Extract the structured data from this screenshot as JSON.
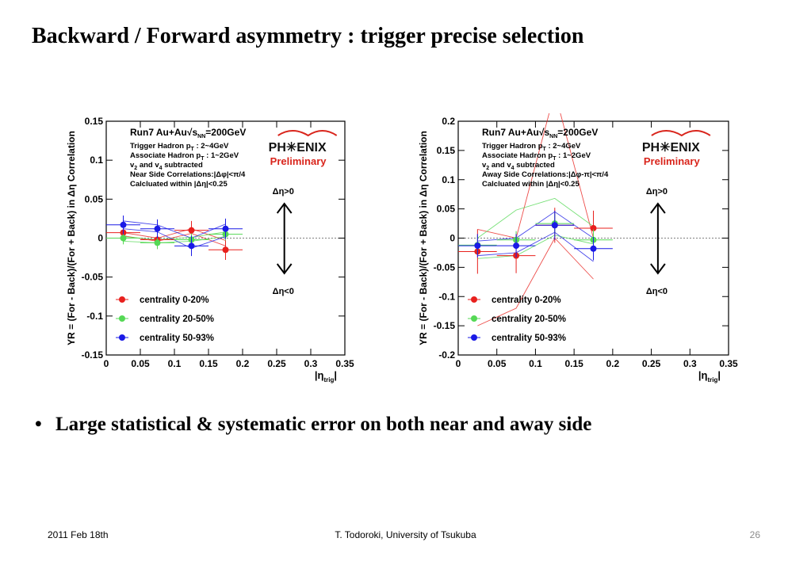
{
  "slide": {
    "title": "Backward / Forward asymmetry : trigger precise selection",
    "bullet_symbol": "•",
    "bullet": "Large statistical & systematic error on both near and away side",
    "footer_date": "2011 Feb 18th",
    "footer_author": "T. Todoroki, University of Tsukuba",
    "page_number": "26"
  },
  "chart_data": [
    {
      "type": "scatter",
      "panel": "left",
      "title": "",
      "ylabel": "YR = (For - Back)/(For + Back) in Δη Correlation",
      "xlabel_main": "|η",
      "xlabel_sub": "trig",
      "xlabel_end": "|",
      "xlim": [
        0,
        0.35
      ],
      "ylim": [
        -0.15,
        0.15
      ],
      "x_ticks": [
        0,
        0.05,
        0.1,
        0.15,
        0.2,
        0.25,
        0.3,
        0.35
      ],
      "x_tick_labels": [
        "0",
        "0.05",
        "0.1",
        "0.15",
        "0.2",
        "0.25",
        "0.3",
        "0.35"
      ],
      "y_ticks": [
        -0.15,
        -0.1,
        -0.05,
        0,
        0.05,
        0.1,
        0.15
      ],
      "y_tick_labels": [
        "-0.15",
        "-0.1",
        "-0.05",
        "0",
        "0.05",
        "0.1",
        "0.15"
      ],
      "info_lines": [
        "Run7 Au+Au√s_NN=200GeV",
        "Trigger Hadron p_T : 2~4GeV",
        "Associate Hadron p_T : 1~2GeV",
        "v_2 and v_4 subtracted",
        "Near Side Correlations:|Δφ|<π/4",
        "Calcluated within |Δη|<0.25"
      ],
      "logo": "PH✳ENIX",
      "preliminary": "Preliminary",
      "arrow_up_label": "Δη>0",
      "arrow_down_label": "Δη<0",
      "legend_position": "bottom-left",
      "series": [
        {
          "name": "centrality 0-20%",
          "color": "#e8201d",
          "x": [
            0.025,
            0.075,
            0.125,
            0.175
          ],
          "y": [
            0.007,
            -0.002,
            0.01,
            -0.015
          ],
          "err": [
            0.01,
            0.012,
            0.012,
            0.013
          ],
          "sys_lower": [
            0.003,
            -0.004,
            0.006,
            -0.01
          ],
          "sys_upper": [
            0.007,
            0.0,
            0.012,
            -0.003
          ]
        },
        {
          "name": "centrality 20-50%",
          "color": "#55d855",
          "x": [
            0.025,
            0.075,
            0.125,
            0.175
          ],
          "y": [
            0.0,
            -0.006,
            -0.002,
            0.005
          ],
          "err": [
            0.008,
            0.008,
            0.008,
            0.008
          ],
          "sys_lower": [
            -0.004,
            -0.006,
            -0.004,
            0.002
          ],
          "sys_upper": [
            0.002,
            -0.002,
            0.001,
            0.008
          ]
        },
        {
          "name": "centrality 50-93%",
          "color": "#1a1ae6",
          "x": [
            0.025,
            0.075,
            0.125,
            0.175
          ],
          "y": [
            0.017,
            0.012,
            -0.01,
            0.012
          ],
          "err": [
            0.012,
            0.012,
            0.013,
            0.013
          ],
          "sys_lower": [
            0.012,
            0.008,
            -0.013,
            0.002
          ],
          "sys_upper": [
            0.022,
            0.017,
            0.0,
            0.018
          ]
        }
      ]
    },
    {
      "type": "scatter",
      "panel": "right",
      "title": "",
      "ylabel": "YR = (For - Back)/(For + Back) in Δη Correlation",
      "xlabel_main": "|η",
      "xlabel_sub": "trig",
      "xlabel_end": "|",
      "xlim": [
        0,
        0.35
      ],
      "ylim": [
        -0.2,
        0.2
      ],
      "x_ticks": [
        0,
        0.05,
        0.1,
        0.15,
        0.2,
        0.25,
        0.3,
        0.35
      ],
      "x_tick_labels": [
        "0",
        "0.05",
        "0.1",
        "0.15",
        "0.2",
        "0.25",
        "0.3",
        "0.35"
      ],
      "y_ticks": [
        -0.2,
        -0.15,
        -0.1,
        -0.05,
        0,
        0.05,
        0.1,
        0.15,
        0.2
      ],
      "y_tick_labels": [
        "-0.2",
        "-0.15",
        "-0.1",
        "-0.05",
        "0",
        "0.05",
        "0.1",
        "0.15",
        "0.2"
      ],
      "info_lines": [
        "Run7 Au+Au√s_NN=200GeV",
        "Trigger Hadron p_T : 2~4GeV",
        "Associate Hadron p_T : 1~2GeV",
        "v_2 and v_4 subtracted",
        "Away Side Correlations:|Δφ-π|<π/4",
        "Calcluated within |Δη|<0.25"
      ],
      "logo": "PH✳ENIX",
      "preliminary": "Preliminary",
      "arrow_up_label": "Δη>0",
      "arrow_down_label": "Δη<0",
      "legend_position": "bottom-left",
      "series": [
        {
          "name": "centrality 0-20%",
          "color": "#e8201d",
          "x": [
            0.025,
            0.075,
            0.125,
            0.175
          ],
          "y": [
            -0.023,
            -0.03,
            0.022,
            0.017
          ],
          "err": [
            0.038,
            0.03,
            0.03,
            0.03
          ],
          "sys_lower": [
            -0.15,
            -0.12,
            0.0,
            -0.07
          ],
          "sys_upper": [
            0.015,
            0.0,
            0.25,
            0.0
          ]
        },
        {
          "name": "centrality 20-50%",
          "color": "#55d855",
          "x": [
            0.025,
            0.075,
            0.125,
            0.175
          ],
          "y": [
            -0.012,
            -0.003,
            0.025,
            -0.003
          ],
          "err": [
            0.015,
            0.015,
            0.018,
            0.018
          ],
          "sys_lower": [
            -0.035,
            -0.03,
            0.005,
            -0.01
          ],
          "sys_upper": [
            0.0,
            0.048,
            0.068,
            0.02
          ]
        },
        {
          "name": "centrality 50-93%",
          "color": "#1a1ae6",
          "x": [
            0.025,
            0.075,
            0.125,
            0.175
          ],
          "y": [
            -0.013,
            -0.013,
            0.022,
            -0.018
          ],
          "err": [
            0.02,
            0.02,
            0.025,
            0.02
          ],
          "sys_lower": [
            -0.03,
            -0.025,
            0.01,
            -0.04
          ],
          "sys_upper": [
            -0.005,
            0.0,
            0.045,
            0.0
          ]
        }
      ]
    }
  ]
}
